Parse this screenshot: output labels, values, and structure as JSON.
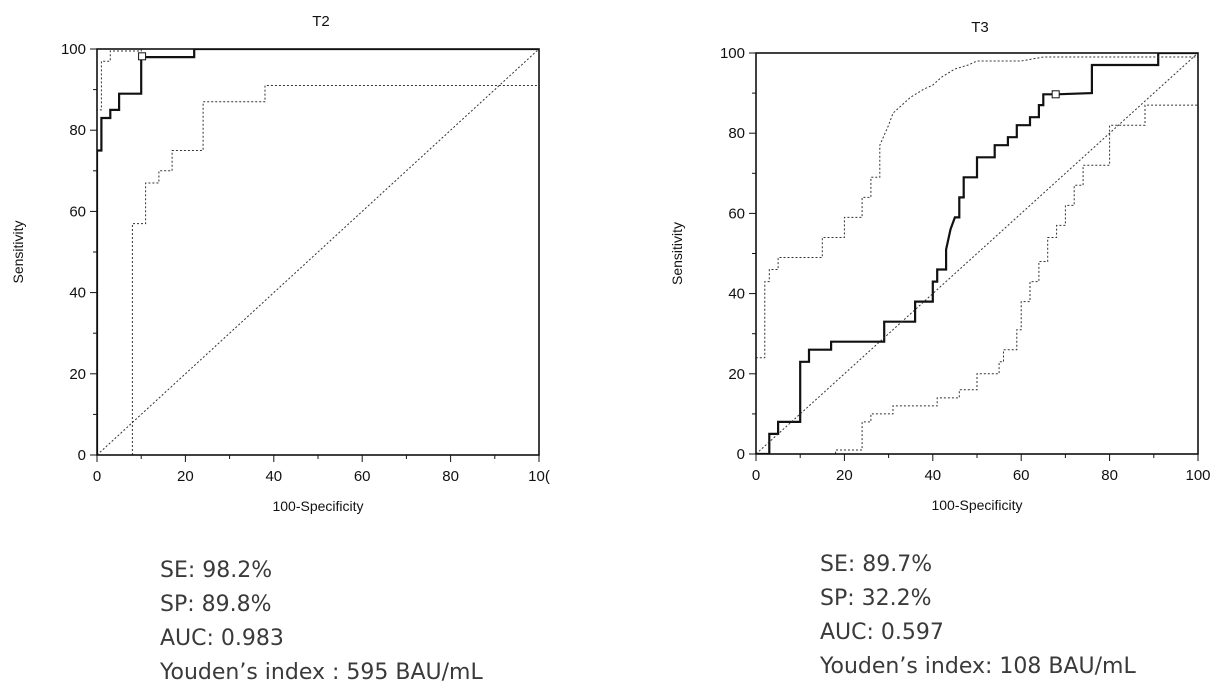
{
  "chart_data": [
    {
      "type": "line",
      "title": "T2",
      "xlabel": "100-Specificity",
      "ylabel": "Sensitivity",
      "xlim": [
        0,
        100
      ],
      "ylim": [
        0,
        100
      ],
      "x_ticks": [
        "0",
        "20",
        "40",
        "60",
        "80",
        "10("
      ],
      "y_ticks": [
        "0",
        "20",
        "40",
        "60",
        "80",
        "100"
      ],
      "grid": false,
      "series": [
        {
          "role": "roc",
          "style": "solid",
          "points": [
            [
              0,
              0
            ],
            [
              0,
              75
            ],
            [
              1,
              75
            ],
            [
              1,
              83
            ],
            [
              3,
              83
            ],
            [
              3,
              85
            ],
            [
              5,
              85
            ],
            [
              5,
              89
            ],
            [
              10,
              89
            ],
            [
              10,
              98
            ],
            [
              22,
              98
            ],
            [
              22,
              100
            ],
            [
              100,
              100
            ]
          ]
        },
        {
          "role": "upper-ci",
          "style": "dotted",
          "points": [
            [
              0,
              0
            ],
            [
              0,
              85
            ],
            [
              1,
              85
            ],
            [
              1,
              97
            ],
            [
              3,
              97
            ],
            [
              3,
              99.5
            ],
            [
              10,
              99.5
            ],
            [
              10,
              100
            ],
            [
              100,
              100
            ]
          ]
        },
        {
          "role": "lower-ci",
          "style": "dotted",
          "points": [
            [
              8,
              0
            ],
            [
              8,
              57
            ],
            [
              11,
              57
            ],
            [
              11,
              67
            ],
            [
              14,
              67
            ],
            [
              14,
              70
            ],
            [
              17,
              70
            ],
            [
              17,
              75
            ],
            [
              24,
              75
            ],
            [
              24,
              87
            ],
            [
              38,
              87
            ],
            [
              38,
              91
            ],
            [
              100,
              91
            ]
          ]
        },
        {
          "role": "reference",
          "style": "dotted",
          "points": [
            [
              0,
              0
            ],
            [
              100,
              100
            ]
          ]
        }
      ],
      "marker": {
        "x": 10.2,
        "y": 98.2
      }
    },
    {
      "type": "line",
      "title": "T3",
      "xlabel": "100-Specificity",
      "ylabel": "Sensitivity",
      "xlim": [
        0,
        100
      ],
      "ylim": [
        0,
        100
      ],
      "x_ticks": [
        "0",
        "20",
        "40",
        "60",
        "80",
        "100"
      ],
      "y_ticks": [
        "0",
        "20",
        "40",
        "60",
        "80",
        "100"
      ],
      "grid": false,
      "series": [
        {
          "role": "roc",
          "style": "solid",
          "points": [
            [
              0,
              0
            ],
            [
              3,
              0
            ],
            [
              3,
              5
            ],
            [
              5,
              5
            ],
            [
              5,
              8
            ],
            [
              10,
              8
            ],
            [
              10,
              23
            ],
            [
              12,
              23
            ],
            [
              12,
              26
            ],
            [
              17,
              26
            ],
            [
              17,
              28
            ],
            [
              29,
              28
            ],
            [
              29,
              33
            ],
            [
              36,
              33
            ],
            [
              36,
              38
            ],
            [
              40,
              38
            ],
            [
              40,
              43
            ],
            [
              41,
              43
            ],
            [
              41,
              46
            ],
            [
              43,
              46
            ],
            [
              43,
              51
            ],
            [
              44,
              56
            ],
            [
              45,
              59
            ],
            [
              46,
              59
            ],
            [
              46,
              64
            ],
            [
              47,
              64
            ],
            [
              47,
              69
            ],
            [
              50,
              69
            ],
            [
              50,
              74
            ],
            [
              54,
              74
            ],
            [
              54,
              77
            ],
            [
              57,
              77
            ],
            [
              57,
              79
            ],
            [
              59,
              79
            ],
            [
              59,
              82
            ],
            [
              62,
              82
            ],
            [
              62,
              84
            ],
            [
              64,
              84
            ],
            [
              64,
              87
            ],
            [
              65,
              87
            ],
            [
              65,
              89.7
            ],
            [
              68,
              89.7
            ],
            [
              76,
              90
            ],
            [
              76,
              97
            ],
            [
              91,
              97
            ],
            [
              91,
              100
            ],
            [
              100,
              100
            ]
          ]
        },
        {
          "role": "upper-ci",
          "style": "dotted",
          "points": [
            [
              0,
              0
            ],
            [
              0,
              24
            ],
            [
              2,
              24
            ],
            [
              2,
              43
            ],
            [
              3,
              43
            ],
            [
              3,
              46
            ],
            [
              5,
              46
            ],
            [
              5,
              49
            ],
            [
              15,
              49
            ],
            [
              15,
              54
            ],
            [
              20,
              54
            ],
            [
              20,
              59
            ],
            [
              24,
              59
            ],
            [
              24,
              64
            ],
            [
              26,
              64
            ],
            [
              26,
              69
            ],
            [
              28,
              69
            ],
            [
              28,
              77
            ],
            [
              30,
              82
            ],
            [
              31,
              85
            ],
            [
              33,
              87
            ],
            [
              35,
              89
            ],
            [
              38,
              91
            ],
            [
              40,
              92
            ],
            [
              42,
              94
            ],
            [
              45,
              96
            ],
            [
              48,
              97
            ],
            [
              50,
              98
            ],
            [
              60,
              98
            ],
            [
              65,
              99
            ],
            [
              100,
              99
            ]
          ]
        },
        {
          "role": "lower-ci",
          "style": "dotted",
          "points": [
            [
              0,
              0
            ],
            [
              18,
              0
            ],
            [
              18,
              1
            ],
            [
              24,
              1
            ],
            [
              24,
              8
            ],
            [
              26,
              8
            ],
            [
              26,
              10
            ],
            [
              31,
              10
            ],
            [
              31,
              12
            ],
            [
              41,
              12
            ],
            [
              41,
              14
            ],
            [
              46,
              14
            ],
            [
              46,
              16
            ],
            [
              50,
              16
            ],
            [
              50,
              20
            ],
            [
              55,
              20
            ],
            [
              55,
              23
            ],
            [
              56,
              23
            ],
            [
              56,
              26
            ],
            [
              59,
              26
            ],
            [
              59,
              31
            ],
            [
              60,
              31
            ],
            [
              60,
              38
            ],
            [
              62,
              38
            ],
            [
              62,
              43
            ],
            [
              64,
              43
            ],
            [
              64,
              48
            ],
            [
              66,
              48
            ],
            [
              66,
              54
            ],
            [
              68,
              54
            ],
            [
              68,
              57
            ],
            [
              70,
              57
            ],
            [
              70,
              62
            ],
            [
              72,
              62
            ],
            [
              72,
              67
            ],
            [
              74,
              67
            ],
            [
              74,
              72
            ],
            [
              80,
              72
            ],
            [
              80,
              82
            ],
            [
              88,
              82
            ],
            [
              88,
              87
            ],
            [
              100,
              87
            ]
          ]
        },
        {
          "role": "reference",
          "style": "dotted",
          "points": [
            [
              0,
              0
            ],
            [
              100,
              100
            ]
          ]
        }
      ],
      "marker": {
        "x": 67.8,
        "y": 89.7
      }
    }
  ],
  "stats": {
    "t2": {
      "se": "SE: 98.2%",
      "sp": "SP: 89.8%",
      "auc": "AUC: 0.983",
      "youden": "Youden’s index : 595 BAU/mL"
    },
    "t3": {
      "se": "SE: 89.7%",
      "sp": "SP: 32.2%",
      "auc": "AUC: 0.597",
      "youden": "Youden’s index: 108 BAU/mL"
    }
  }
}
